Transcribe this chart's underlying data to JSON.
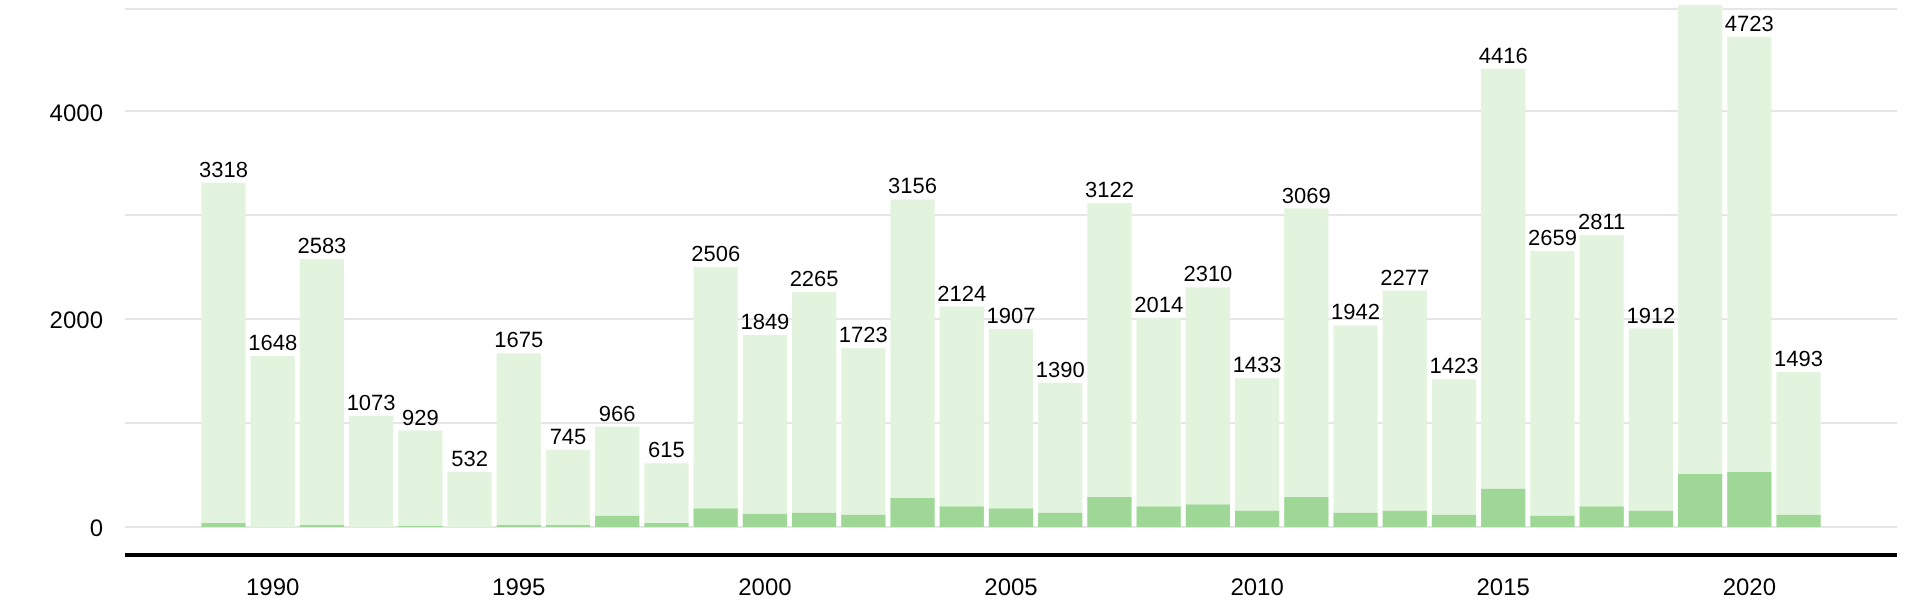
{
  "chart_data": {
    "type": "bar",
    "stacked": true,
    "x": [
      1989,
      1990,
      1991,
      1992,
      1993,
      1994,
      1995,
      1996,
      1997,
      1998,
      1999,
      2000,
      2001,
      2002,
      2003,
      2004,
      2005,
      2006,
      2007,
      2008,
      2009,
      2010,
      2011,
      2012,
      2013,
      2014,
      2015,
      2016,
      2017,
      2018,
      2019,
      2020,
      2021
    ],
    "series": [
      {
        "color": "#9fd896",
        "values": [
          40,
          0,
          20,
          0,
          10,
          0,
          20,
          20,
          110,
          40,
          180,
          130,
          140,
          120,
          280,
          200,
          180,
          140,
          290,
          200,
          220,
          160,
          290,
          140,
          160,
          120,
          370,
          110,
          200,
          160,
          510,
          530,
          120
        ]
      },
      {
        "color": "#e3f4de",
        "values": [
          3278,
          1648,
          2563,
          1073,
          919,
          532,
          1655,
          725,
          856,
          575,
          2326,
          1719,
          2125,
          1603,
          2876,
          1924,
          1727,
          1250,
          2832,
          1814,
          2090,
          1273,
          2779,
          1802,
          2117,
          1303,
          4046,
          2549,
          2611,
          1752,
          4520,
          4193,
          1373
        ]
      }
    ],
    "totals": [
      "3318",
      "1648",
      "2583",
      "1073",
      "929",
      "532",
      "1675",
      "745",
      "966",
      "615",
      "2506",
      "1849",
      "2265",
      "1723",
      "3156",
      "2124",
      "1907",
      "1390",
      "3122",
      "2014",
      "2310",
      "1433",
      "3069",
      "1942",
      "2277",
      "1423",
      "4416",
      "2659",
      "2811",
      "1912",
      null,
      "4723",
      "1493"
    ],
    "xlim": [
      1987,
      2023
    ],
    "xticks": [
      1990,
      1995,
      2000,
      2005,
      2010,
      2015,
      2020
    ],
    "ylim": [
      -270,
      5030
    ],
    "yticks": [
      0,
      {
        "value": 1000,
        "label": null
      },
      2000,
      {
        "value": 3000,
        "label": null
      },
      4000,
      {
        "value": 5000,
        "label": null
      }
    ],
    "grid": "y"
  }
}
